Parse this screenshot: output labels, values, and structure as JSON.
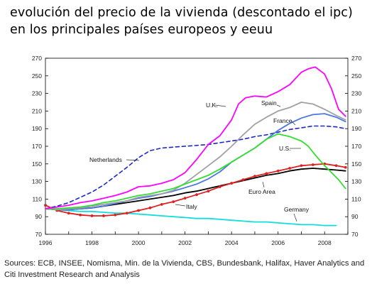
{
  "title_line1": "evolución del precio de la vivienda (descontado el ipc)",
  "title_line2": "en los principales países europeos y eeuu",
  "source": "Sources: ECB, INSEE, Nomisma, Min. de la Vivienda, CBS, Bundesbank, Halifax, Haver Analytics and Citi Investment Research and Analysis",
  "chart_data": {
    "type": "line",
    "title": "",
    "xlabel": "",
    "ylabel": "",
    "xlim": [
      1996,
      2009
    ],
    "ylim": [
      70,
      270
    ],
    "x_ticks": [
      "1996",
      "1998",
      "2000",
      "2002",
      "2004",
      "2006",
      "2008"
    ],
    "y_ticks": [
      "70",
      "90",
      "110",
      "130",
      "150",
      "170",
      "190",
      "210",
      "230",
      "250",
      "270"
    ],
    "y_axis_right": true,
    "grid": false,
    "legend": "inline labels",
    "series": [
      {
        "name": "U.K.",
        "color": "#ff00ff",
        "style": "solid",
        "x": [
          1996,
          1996.5,
          1997,
          1997.5,
          1998,
          1998.5,
          1999,
          1999.5,
          2000,
          2000.5,
          2001,
          2001.5,
          2002,
          2002.5,
          2003,
          2003.5,
          2004,
          2004.3,
          2004.6,
          2005,
          2005.5,
          2006,
          2006.5,
          2007,
          2007.3,
          2007.6,
          2008,
          2008.3,
          2008.6,
          2008.9
        ],
        "y": [
          99,
          101,
          103,
          106,
          108,
          111,
          114,
          118,
          124,
          125,
          128,
          132,
          140,
          155,
          172,
          182,
          200,
          218,
          225,
          227,
          226,
          232,
          240,
          254,
          258,
          260,
          252,
          235,
          212,
          204
        ]
      },
      {
        "name": "Spain",
        "color": "#a0a0a8",
        "style": "solid",
        "x": [
          1996,
          1996.5,
          1997,
          1997.5,
          1998,
          1998.5,
          1999,
          1999.5,
          2000,
          2000.5,
          2001,
          2001.5,
          2002,
          2002.5,
          2003,
          2003.5,
          2004,
          2004.5,
          2005,
          2005.5,
          2006,
          2006.5,
          2007,
          2007.5,
          2008,
          2008.5,
          2008.9
        ],
        "y": [
          99,
          98,
          99,
          100,
          102,
          104,
          106,
          108,
          112,
          114,
          116,
          120,
          128,
          138,
          148,
          158,
          170,
          183,
          195,
          203,
          210,
          214,
          220,
          218,
          212,
          205,
          200
        ]
      },
      {
        "name": "France",
        "color": "#4a78e0",
        "style": "solid",
        "x": [
          1996,
          1996.5,
          1997,
          1997.5,
          1998,
          1998.5,
          1999,
          1999.5,
          2000,
          2000.5,
          2001,
          2001.5,
          2002,
          2002.5,
          2003,
          2003.5,
          2004,
          2004.5,
          2005,
          2005.5,
          2006,
          2006.5,
          2007,
          2007.5,
          2008,
          2008.5,
          2008.9
        ],
        "y": [
          99,
          98,
          98,
          99,
          100,
          102,
          105,
          108,
          111,
          113,
          116,
          119,
          123,
          127,
          133,
          141,
          152,
          160,
          168,
          178,
          188,
          196,
          202,
          206,
          207,
          203,
          198
        ]
      },
      {
        "name": "Netherlands",
        "color": "#1a28c8",
        "style": "dashed",
        "x": [
          1996,
          1996.5,
          1997,
          1997.5,
          1998,
          1998.5,
          1999,
          1999.5,
          2000,
          2000.5,
          2001,
          2001.5,
          2002,
          2002.5,
          2003,
          2003.5,
          2004,
          2004.5,
          2005,
          2005.5,
          2006,
          2006.5,
          2007,
          2007.5,
          2008,
          2008.5,
          2008.9
        ],
        "y": [
          99,
          102,
          106,
          112,
          118,
          126,
          136,
          146,
          157,
          165,
          168,
          169,
          170,
          171,
          172,
          174,
          176,
          178,
          181,
          183,
          186,
          189,
          191,
          193,
          193,
          192,
          190
        ]
      },
      {
        "name": "U.S.",
        "color": "#33dd33",
        "style": "solid",
        "x": [
          1996,
          1996.5,
          1997,
          1997.5,
          1998,
          1998.5,
          1999,
          1999.5,
          2000,
          2000.5,
          2001,
          2001.5,
          2002,
          2002.5,
          2003,
          2003.5,
          2004,
          2004.5,
          2005,
          2005.5,
          2006,
          2006.5,
          2007,
          2007.3,
          2007.6,
          2008,
          2008.3,
          2008.6,
          2008.9
        ],
        "y": [
          99,
          99,
          100,
          101,
          103,
          106,
          108,
          111,
          114,
          116,
          119,
          122,
          127,
          132,
          137,
          144,
          152,
          160,
          168,
          178,
          184,
          181,
          176,
          170,
          160,
          148,
          140,
          132,
          122
        ]
      },
      {
        "name": "Euro Area",
        "color": "#000000",
        "style": "solid",
        "x": [
          1996,
          1996.5,
          1997,
          1997.5,
          1998,
          1998.5,
          1999,
          1999.5,
          2000,
          2000.5,
          2001,
          2001.5,
          2002,
          2002.5,
          2003,
          2003.5,
          2004,
          2004.5,
          2005,
          2005.5,
          2006,
          2006.5,
          2007,
          2007.5,
          2008,
          2008.5,
          2008.9
        ],
        "y": [
          99,
          98,
          98,
          99,
          100,
          102,
          104,
          106,
          108,
          110,
          112,
          114,
          117,
          119,
          122,
          125,
          128,
          131,
          134,
          137,
          139,
          142,
          144,
          145,
          144,
          143,
          142
        ]
      },
      {
        "name": "Italy",
        "color": "#dd2020",
        "style": "markers",
        "x": [
          1996,
          1996.5,
          1997,
          1997.5,
          1998,
          1998.5,
          1999,
          1999.5,
          2000,
          2000.5,
          2001,
          2001.5,
          2002,
          2002.5,
          2003,
          2003.5,
          2004,
          2004.5,
          2005,
          2005.5,
          2006,
          2006.5,
          2007,
          2007.5,
          2008,
          2008.5,
          2008.9
        ],
        "y": [
          103,
          97,
          94,
          92,
          91,
          91,
          92,
          94,
          97,
          100,
          104,
          107,
          111,
          115,
          119,
          124,
          128,
          132,
          136,
          139,
          142,
          145,
          148,
          149,
          150,
          148,
          146
        ]
      },
      {
        "name": "Germany",
        "color": "#11dddd",
        "style": "solid",
        "x": [
          1996,
          1996.5,
          1997,
          1997.5,
          1998,
          1998.5,
          1999,
          1999.5,
          2000,
          2000.5,
          2001,
          2001.5,
          2002,
          2002.5,
          2003,
          2003.5,
          2004,
          2004.5,
          2005,
          2005.5,
          2006,
          2006.5,
          2007,
          2007.5,
          2008,
          2008.5
        ],
        "y": [
          99,
          98,
          97,
          96,
          96,
          95,
          94,
          94,
          93,
          92,
          91,
          90,
          89,
          88,
          88,
          87,
          86,
          85,
          84,
          84,
          83,
          82,
          81,
          81,
          80,
          80
        ]
      }
    ]
  }
}
